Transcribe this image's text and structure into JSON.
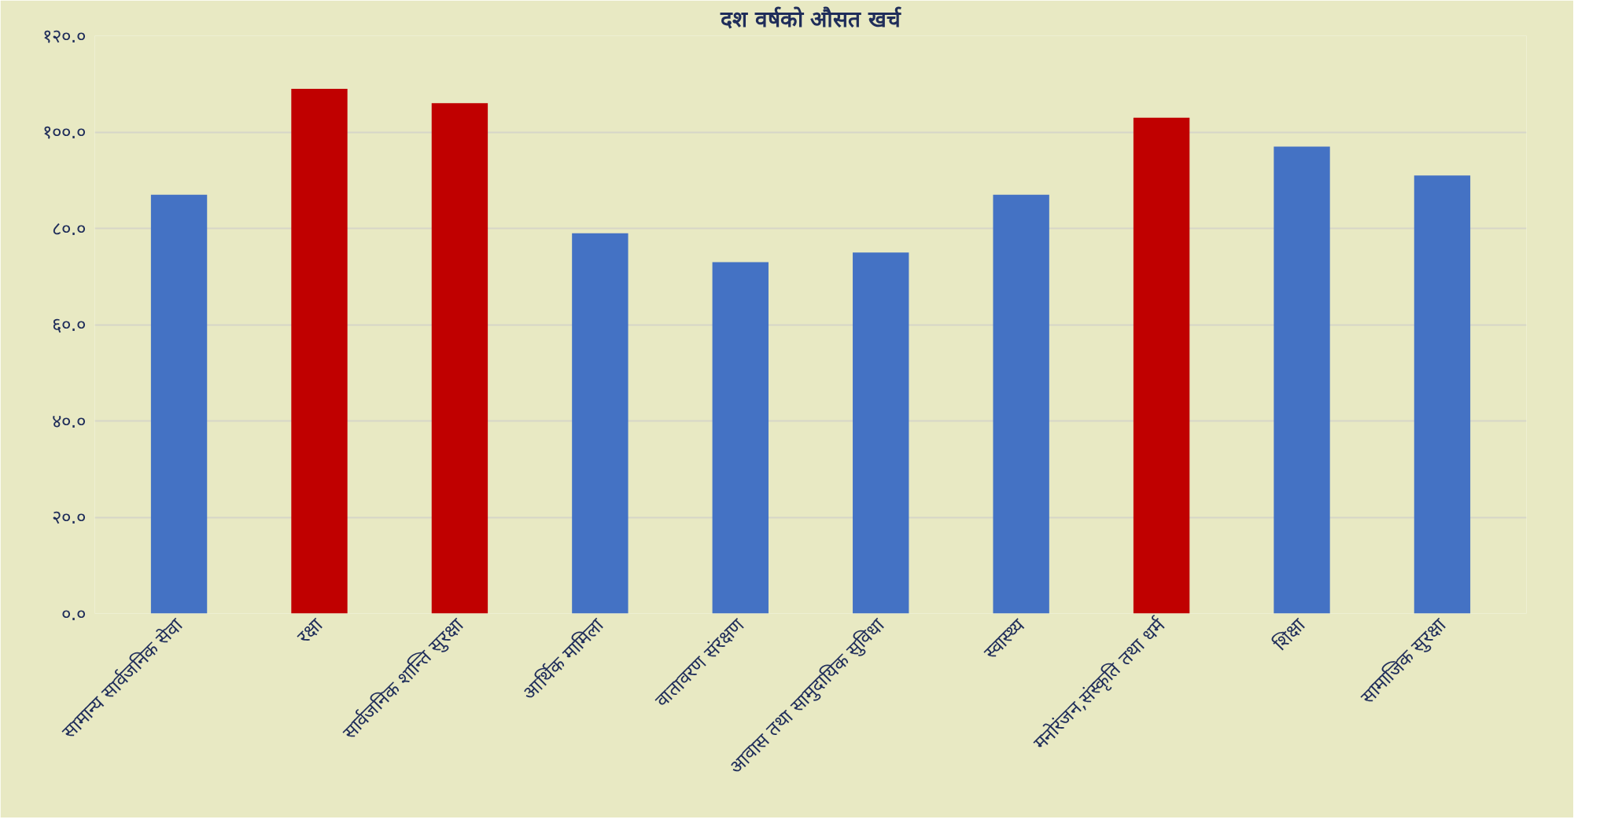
{
  "chart_data": {
    "type": "bar",
    "title": "दश वर्षको औसत खर्च",
    "categories": [
      "सामान्य सार्वजनिक सेवा",
      "रक्षा",
      "सार्वजनिक शान्ति सुरक्षा",
      "आर्थिक मामिला",
      "वातावरण संरक्षण",
      "आवास तथा सामुदायिक सुविधा",
      "स्वास्थ्य",
      "मनोरंजन,संस्कृति तथा धर्म",
      "शिक्षा",
      "सामाजिक सुरक्षा"
    ],
    "values": [
      87,
      109,
      106,
      79,
      73,
      75,
      87,
      103,
      97,
      91
    ],
    "colors": [
      "#4472c4",
      "#c00000",
      "#c00000",
      "#4472c4",
      "#4472c4",
      "#4472c4",
      "#4472c4",
      "#c00000",
      "#4472c4",
      "#4472c4"
    ],
    "ylim": [
      0,
      120
    ],
    "yticks": [
      {
        "value": 0,
        "label": "०.०"
      },
      {
        "value": 20,
        "label": "२०.०"
      },
      {
        "value": 40,
        "label": "४०.०"
      },
      {
        "value": 60,
        "label": "६०.०"
      },
      {
        "value": 80,
        "label": "८०.०"
      },
      {
        "value": 100,
        "label": "१००.०"
      },
      {
        "value": 120,
        "label": "१२०.०"
      }
    ],
    "grid": "y"
  }
}
